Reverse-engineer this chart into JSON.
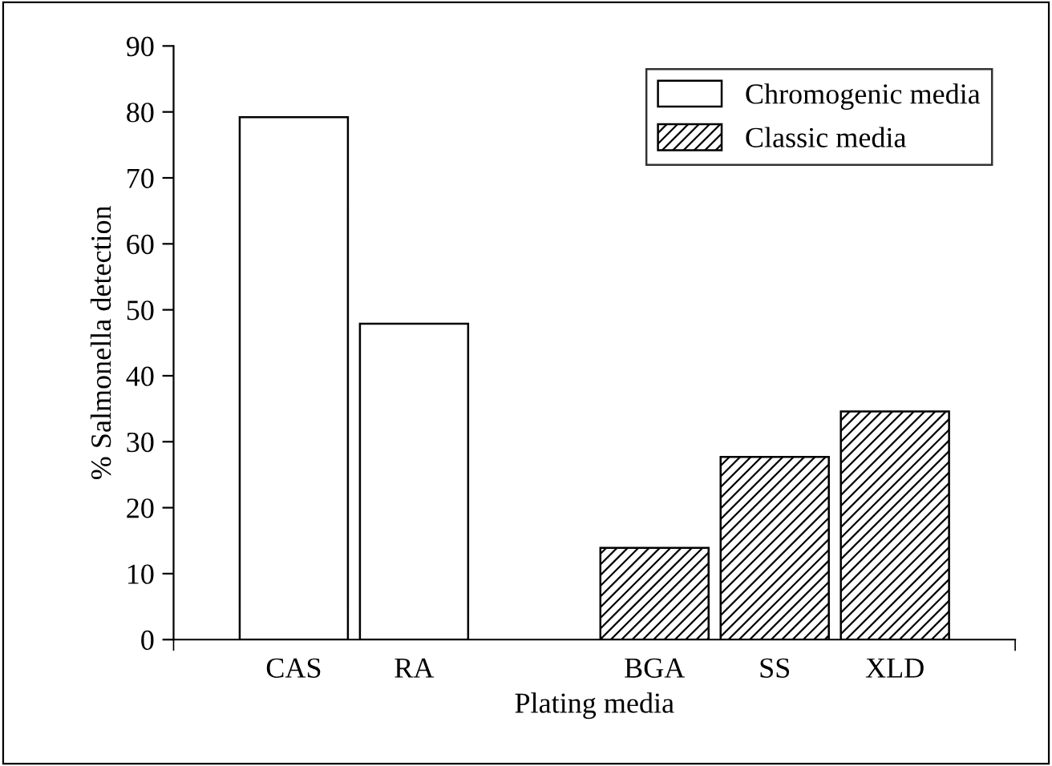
{
  "chart_data": {
    "type": "bar",
    "xlabel": "Plating media",
    "ylabel": "% Salmonella detection",
    "categories": [
      "CAS",
      "RA",
      null,
      "BGA",
      "SS",
      "XLD"
    ],
    "series": [
      {
        "name": "Chromogenic media",
        "color": "#ffffff",
        "values": [
          79.2,
          47.9,
          null,
          null,
          null,
          null
        ]
      },
      {
        "name": "Classic media",
        "color": "#000000",
        "values": [
          null,
          null,
          null,
          13.9,
          27.7,
          34.6
        ]
      }
    ],
    "ylim": [
      0,
      90
    ],
    "yticks": [
      0,
      10,
      20,
      30,
      40,
      50,
      60,
      70,
      80,
      90
    ],
    "grid": false,
    "legend": "top right"
  }
}
